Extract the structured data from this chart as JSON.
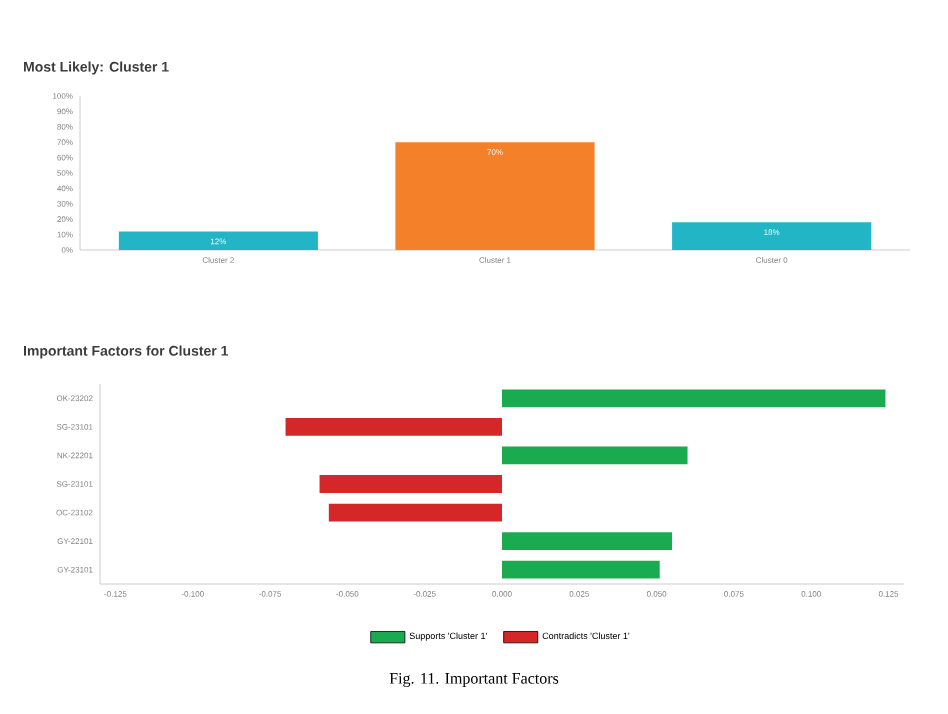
{
  "chart_data": [
    {
      "type": "bar",
      "title": "Most Likely: Cluster 1",
      "categories": [
        "Cluster 2",
        "Cluster 1",
        "Cluster 0"
      ],
      "values": [
        12,
        70,
        18
      ],
      "colors": [
        "#22b5c6",
        "#f4812a",
        "#22b5c6"
      ],
      "value_labels": [
        "12%",
        "70%",
        "18%"
      ],
      "ylim": [
        0,
        100
      ],
      "yticks": [
        {
          "value": 0,
          "label": "0%"
        },
        {
          "value": 10,
          "label": "10%"
        },
        {
          "value": 20,
          "label": "20%"
        },
        {
          "value": 30,
          "label": "30%"
        },
        {
          "value": 40,
          "label": "40%"
        },
        {
          "value": 50,
          "label": "50%"
        },
        {
          "value": 60,
          "label": "60%"
        },
        {
          "value": 70,
          "label": "70%"
        },
        {
          "value": 80,
          "label": "80%"
        },
        {
          "value": 90,
          "label": "90%"
        },
        {
          "value": 100,
          "label": "100%"
        }
      ],
      "grid": false
    },
    {
      "type": "bar",
      "orientation": "horizontal",
      "title": "Important Factors for Cluster 1",
      "categories": [
        "OK-23202",
        "SG-23101",
        "NK-22201",
        "SG-23101",
        "OC-23102",
        "GY-22101",
        "GY-23101"
      ],
      "series": [
        {
          "name": "Supports 'Cluster 1'",
          "color": "#1aab50",
          "values": [
            0.124,
            null,
            0.06,
            null,
            null,
            0.055,
            0.051
          ]
        },
        {
          "name": "Contradicts 'Cluster 1'",
          "color": "#d62728",
          "values": [
            null,
            -0.07,
            null,
            -0.059,
            -0.056,
            null,
            null
          ]
        }
      ],
      "xlim": [
        -0.13,
        0.13
      ],
      "xticks": [
        {
          "value": -0.125,
          "label": "-0.125"
        },
        {
          "value": -0.1,
          "label": "-0.100"
        },
        {
          "value": -0.075,
          "label": "-0.075"
        },
        {
          "value": -0.05,
          "label": "-0.050"
        },
        {
          "value": -0.025,
          "label": "-0.025"
        },
        {
          "value": 0,
          "label": "0.000"
        },
        {
          "value": 0.025,
          "label": "0.025"
        },
        {
          "value": 0.05,
          "label": "0.050"
        },
        {
          "value": 0.075,
          "label": "0.075"
        },
        {
          "value": 0.1,
          "label": "0.100"
        },
        {
          "value": 0.125,
          "label": "0.125"
        }
      ],
      "grid": false,
      "legend": "bottom",
      "annotations": [
        "Fig. 11. Important Factors"
      ]
    }
  ]
}
